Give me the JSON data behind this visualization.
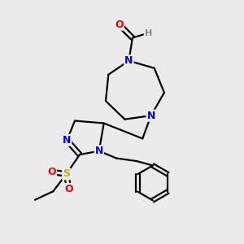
{
  "bg_color": "#ebebeb",
  "atom_colors": {
    "N": "#0000ee",
    "O": "#ff0000",
    "S": "#ccaa00",
    "C": "#000000",
    "H": "#888888"
  },
  "bond_color": "#000000",
  "bond_width": 1.6
}
